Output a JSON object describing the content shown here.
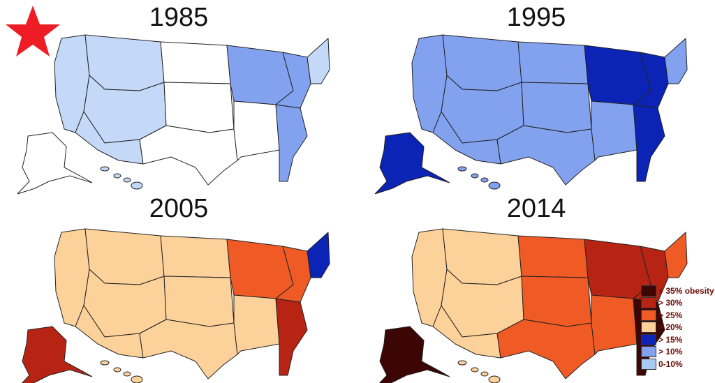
{
  "maps": [
    {
      "year": "1985",
      "fills": {
        "base": "#ffffff",
        "light": "#c4d8f7",
        "mid": "#82a1ee",
        "dark": "#82a1ee",
        "accent": "#c4d8f7"
      }
    },
    {
      "year": "1995",
      "fills": {
        "base": "#82a1ee",
        "light": "#82a1ee",
        "mid": "#0b24b5",
        "dark": "#0b24b5",
        "accent": "#82a1ee"
      }
    },
    {
      "year": "2005",
      "fills": {
        "base": "#fdd19a",
        "light": "#fdd19a",
        "mid": "#f05a25",
        "dark": "#b72413",
        "accent": "#0b24b5"
      }
    },
    {
      "year": "2014",
      "fills": {
        "base": "#f05a25",
        "light": "#fdd19a",
        "mid": "#b72413",
        "dark": "#3b0603",
        "accent": "#f05a25"
      }
    }
  ],
  "legend": [
    {
      "label": "> 35% obesity",
      "color": "#3b0603"
    },
    {
      "label": "> 30%",
      "color": "#b72413"
    },
    {
      "label": "> 25%",
      "color": "#f05a25"
    },
    {
      "label": "> 20%",
      "color": "#fdd19a"
    },
    {
      "label": "> 15%",
      "color": "#0b24b5"
    },
    {
      "label": "> 10%",
      "color": "#82a1ee"
    },
    {
      "label": "0-10%",
      "color": "#a8cbf3"
    }
  ],
  "star_color": "#ee1c24"
}
